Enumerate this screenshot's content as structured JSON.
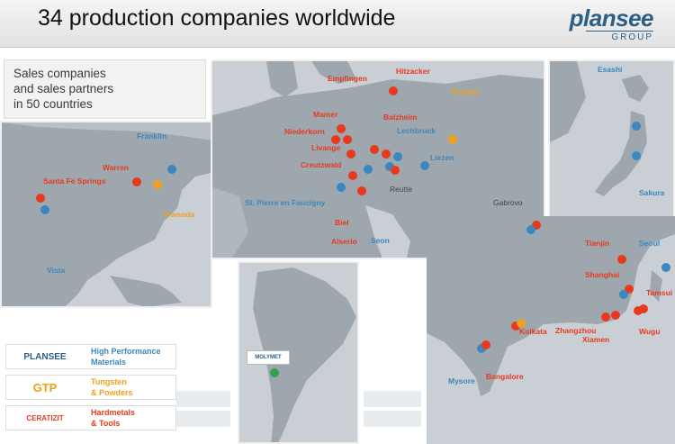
{
  "header": {
    "title": "34 production companies worldwide"
  },
  "logo": {
    "main": "plansee",
    "sub": "GROUP"
  },
  "sales_box": {
    "line1": "Sales companies",
    "line2": "and sales partners",
    "line3": "in 50 countries"
  },
  "locations": {
    "hitzacker": "Hitzacker",
    "empfingen": "Empfingen",
    "mamer": "Mamer",
    "niederkorn": "Niederkorn",
    "livange": "Livange",
    "creutzwald": "Creutzwald",
    "balzheim": "Balzheim",
    "lechbruck": "Lechbruck",
    "liezen": "Liezen",
    "bruntal": "Bruntál",
    "reutte": "Reutte",
    "st_pierre": "St. Pierre en Faucigny",
    "biel": "Biel",
    "alserio": "Alserio",
    "seon": "Seon",
    "gabrovo": "Gabrovo",
    "franklin": "Franklin",
    "warren": "Warren",
    "santa_fe": "Santa Fe Springs",
    "towanda": "Towanda",
    "vista": "Vista",
    "esashi": "Esashi",
    "sakura": "Sakura",
    "tianjin": "Tianjin",
    "seoul": "Seoul",
    "shanghai": "Shanghai",
    "tamsui": "Tamsui",
    "zhangzhou": "Zhangzhou",
    "xiamen": "Xiamen",
    "wugu": "Wugu",
    "kolkata": "Kolkata",
    "mysore": "Mysore",
    "bangalore": "Bangalore"
  },
  "molymet": "MOLYMET",
  "legend": [
    {
      "logo": "PLANSEE",
      "line1": "High Performance",
      "line2": "Materials",
      "color": "#3a88bf"
    },
    {
      "logo": "GTP",
      "line1": "Tungsten",
      "line2": "& Powders",
      "color": "#f0a020"
    },
    {
      "logo": "CERATIZIT",
      "line1": "Hardmetals",
      "line2": "& Tools",
      "color": "#e8391d"
    }
  ],
  "colors": {
    "high_performance": "#3a88bf",
    "tungsten": "#f0a020",
    "hardmetals": "#e8391d",
    "molymet": "#2ea44f",
    "land": "#9ea6ae",
    "sea": "#c9cfd4"
  }
}
